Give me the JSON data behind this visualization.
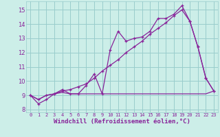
{
  "background_color": "#cceee8",
  "grid_color": "#99cccc",
  "line_color": "#882299",
  "xlim": [
    -0.5,
    23.5
  ],
  "ylim": [
    7.8,
    15.6
  ],
  "xlabel": "Windchill (Refroidissement éolien,°C)",
  "xlabel_fontsize": 6.5,
  "yticks": [
    8,
    9,
    10,
    11,
    12,
    13,
    14,
    15
  ],
  "xticks": [
    0,
    1,
    2,
    3,
    4,
    5,
    6,
    7,
    8,
    9,
    10,
    11,
    12,
    13,
    14,
    15,
    16,
    17,
    18,
    19,
    20,
    21,
    22,
    23
  ],
  "line1_x": [
    0,
    1,
    2,
    3,
    4,
    5,
    6,
    7,
    8,
    9,
    10,
    11,
    12,
    13,
    14,
    15,
    16,
    17,
    18,
    19,
    20,
    21,
    22,
    23
  ],
  "line1_y": [
    9.0,
    8.4,
    8.7,
    9.1,
    9.4,
    9.1,
    9.1,
    9.7,
    10.5,
    9.1,
    12.2,
    13.5,
    12.8,
    13.0,
    13.1,
    13.5,
    14.4,
    14.4,
    14.7,
    15.3,
    14.2,
    12.4,
    10.2,
    9.3
  ],
  "line2_x": [
    0,
    1,
    2,
    3,
    4,
    5,
    6,
    7,
    8,
    9,
    10,
    11,
    12,
    13,
    14,
    15,
    16,
    17,
    18,
    19,
    20,
    21,
    22,
    23
  ],
  "line2_y": [
    9.0,
    8.7,
    9.0,
    9.1,
    9.2,
    9.1,
    9.1,
    9.1,
    9.1,
    9.1,
    9.1,
    9.1,
    9.1,
    9.1,
    9.1,
    9.1,
    9.1,
    9.1,
    9.1,
    9.1,
    9.1,
    9.1,
    9.1,
    9.3
  ],
  "line3_x": [
    0,
    1,
    2,
    3,
    4,
    5,
    6,
    7,
    8,
    9,
    10,
    11,
    12,
    13,
    14,
    15,
    16,
    17,
    18,
    19,
    20,
    21,
    22,
    23
  ],
  "line3_y": [
    9.0,
    8.7,
    9.0,
    9.1,
    9.3,
    9.4,
    9.6,
    9.8,
    10.2,
    10.7,
    11.1,
    11.5,
    12.0,
    12.4,
    12.8,
    13.3,
    13.7,
    14.1,
    14.6,
    15.0,
    14.2,
    12.4,
    10.2,
    9.3
  ]
}
